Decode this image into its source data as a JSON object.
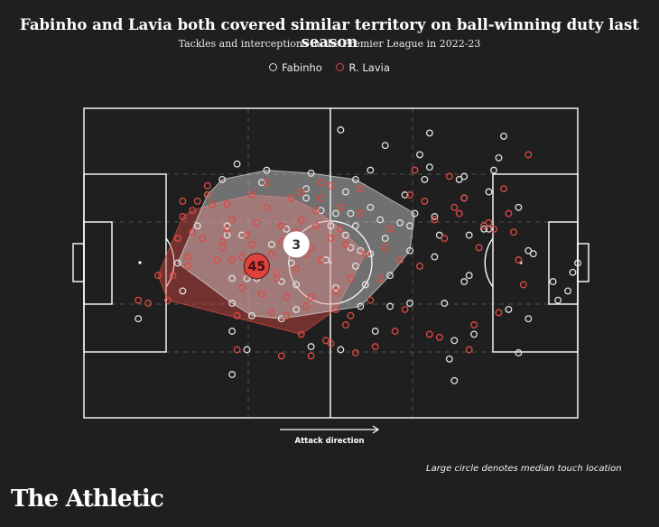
{
  "title": "Fabinho and Lavia both covered similar territory on ball-winning duty last season",
  "subtitle": "Tackles and interceptions in the Premier League in 2022-23",
  "legend": {
    "fabinho": "Fabinho",
    "lavia": "R. Lavia"
  },
  "attack_label": "Attack direction",
  "note": "Large circle denotes median touch location",
  "brand": "The Athletic",
  "colors": {
    "background": "#1f1f1f",
    "fabinho": "#e0e0e0",
    "lavia": "#e04a44",
    "pitch_lines": "#ffffff"
  },
  "chart_data": {
    "type": "scatter",
    "xlim": [
      0,
      100
    ],
    "ylim": [
      0,
      100
    ],
    "series": [
      {
        "name": "Fabinho",
        "median": {
          "x": 43,
          "y": 56,
          "label": "3"
        },
        "points": [
          [
            11,
            32
          ],
          [
            20,
            41
          ],
          [
            19,
            50
          ],
          [
            23,
            62
          ],
          [
            25,
            72
          ],
          [
            28,
            77
          ],
          [
            29,
            62
          ],
          [
            29,
            59
          ],
          [
            30,
            45
          ],
          [
            30,
            37
          ],
          [
            30,
            28
          ],
          [
            30,
            14
          ],
          [
            31,
            82
          ],
          [
            32,
            59
          ],
          [
            33,
            45
          ],
          [
            33,
            22
          ],
          [
            34,
            33
          ],
          [
            35,
            45
          ],
          [
            36,
            76
          ],
          [
            37,
            80
          ],
          [
            38,
            56
          ],
          [
            39,
            47
          ],
          [
            40,
            44
          ],
          [
            40,
            32
          ],
          [
            41,
            61
          ],
          [
            42,
            50
          ],
          [
            43,
            58
          ],
          [
            43,
            43
          ],
          [
            43,
            35
          ],
          [
            45,
            74
          ],
          [
            45,
            71
          ],
          [
            46,
            79
          ],
          [
            46,
            23
          ],
          [
            48,
            67
          ],
          [
            49,
            51
          ],
          [
            50,
            62
          ],
          [
            51,
            42
          ],
          [
            51,
            66
          ],
          [
            52,
            22
          ],
          [
            52,
            93
          ],
          [
            53,
            59
          ],
          [
            53,
            73
          ],
          [
            54,
            66
          ],
          [
            54,
            55
          ],
          [
            55,
            49
          ],
          [
            55,
            77
          ],
          [
            55,
            62
          ],
          [
            56,
            54
          ],
          [
            56,
            36
          ],
          [
            57,
            43
          ],
          [
            58,
            53
          ],
          [
            58,
            68
          ],
          [
            58,
            80
          ],
          [
            59,
            28
          ],
          [
            60,
            64
          ],
          [
            61,
            58
          ],
          [
            61,
            88
          ],
          [
            62,
            46
          ],
          [
            62,
            36
          ],
          [
            64,
            63
          ],
          [
            65,
            72
          ],
          [
            66,
            62
          ],
          [
            66,
            54
          ],
          [
            66,
            37
          ],
          [
            67,
            66
          ],
          [
            68,
            85
          ],
          [
            69,
            77
          ],
          [
            70,
            81
          ],
          [
            70,
            92
          ],
          [
            71,
            65
          ],
          [
            71,
            52
          ],
          [
            72,
            59
          ],
          [
            73,
            37
          ],
          [
            74,
            19
          ],
          [
            75,
            12
          ],
          [
            75,
            25
          ],
          [
            76,
            77
          ],
          [
            77,
            78
          ],
          [
            77,
            71
          ],
          [
            77,
            44
          ],
          [
            78,
            46
          ],
          [
            78,
            59
          ],
          [
            79,
            27
          ],
          [
            81,
            61
          ],
          [
            82,
            61
          ],
          [
            82,
            73
          ],
          [
            83,
            80
          ],
          [
            84,
            84
          ],
          [
            85,
            91
          ],
          [
            86,
            35
          ],
          [
            88,
            68
          ],
          [
            88,
            21
          ],
          [
            90,
            54
          ],
          [
            90,
            32
          ],
          [
            91,
            53
          ],
          [
            95,
            44
          ],
          [
            96,
            38
          ],
          [
            98,
            41
          ],
          [
            99,
            47
          ],
          [
            100,
            50
          ]
        ]
      },
      {
        "name": "R. Lavia",
        "median": {
          "x": 35,
          "y": 49,
          "label": "45"
        },
        "points": [
          [
            11,
            38
          ],
          [
            13,
            37
          ],
          [
            15,
            46
          ],
          [
            17,
            38
          ],
          [
            18,
            46
          ],
          [
            19,
            58
          ],
          [
            20,
            65
          ],
          [
            20,
            70
          ],
          [
            21,
            49
          ],
          [
            21,
            52
          ],
          [
            22,
            60
          ],
          [
            22,
            67
          ],
          [
            23,
            70
          ],
          [
            24,
            58
          ],
          [
            25,
            72
          ],
          [
            25,
            75
          ],
          [
            26,
            69
          ],
          [
            27,
            51
          ],
          [
            28,
            57
          ],
          [
            28,
            55
          ],
          [
            29,
            61
          ],
          [
            29,
            69
          ],
          [
            30,
            51
          ],
          [
            30,
            64
          ],
          [
            31,
            22
          ],
          [
            31,
            33
          ],
          [
            32,
            42
          ],
          [
            32,
            52
          ],
          [
            33,
            47
          ],
          [
            33,
            59
          ],
          [
            34,
            72
          ],
          [
            34,
            56
          ],
          [
            35,
            63
          ],
          [
            36,
            51
          ],
          [
            36,
            40
          ],
          [
            37,
            68
          ],
          [
            37,
            76
          ],
          [
            38,
            34
          ],
          [
            38,
            53
          ],
          [
            39,
            45
          ],
          [
            39,
            47
          ],
          [
            40,
            20
          ],
          [
            40,
            57
          ],
          [
            40,
            62
          ],
          [
            41,
            33
          ],
          [
            41,
            39
          ],
          [
            42,
            71
          ],
          [
            43,
            48
          ],
          [
            43,
            60
          ],
          [
            44,
            64
          ],
          [
            44,
            73
          ],
          [
            44,
            27
          ],
          [
            45,
            36
          ],
          [
            45,
            53
          ],
          [
            46,
            20
          ],
          [
            46,
            55
          ],
          [
            46,
            39
          ],
          [
            47,
            62
          ],
          [
            47,
            67
          ],
          [
            48,
            51
          ],
          [
            48,
            71
          ],
          [
            48,
            76
          ],
          [
            49,
            25
          ],
          [
            50,
            58
          ],
          [
            50,
            24
          ],
          [
            50,
            75
          ],
          [
            51,
            35
          ],
          [
            51,
            41
          ],
          [
            52,
            61
          ],
          [
            52,
            68
          ],
          [
            53,
            56
          ],
          [
            53,
            30
          ],
          [
            54,
            33
          ],
          [
            54,
            45
          ],
          [
            55,
            21
          ],
          [
            56,
            66
          ],
          [
            56,
            74
          ],
          [
            57,
            53
          ],
          [
            58,
            38
          ],
          [
            59,
            23
          ],
          [
            60,
            45
          ],
          [
            61,
            55
          ],
          [
            62,
            61
          ],
          [
            63,
            28
          ],
          [
            64,
            51
          ],
          [
            65,
            35
          ],
          [
            66,
            72
          ],
          [
            67,
            80
          ],
          [
            68,
            49
          ],
          [
            69,
            70
          ],
          [
            70,
            27
          ],
          [
            71,
            64
          ],
          [
            72,
            26
          ],
          [
            73,
            58
          ],
          [
            74,
            78
          ],
          [
            75,
            68
          ],
          [
            76,
            66
          ],
          [
            77,
            71
          ],
          [
            78,
            22
          ],
          [
            79,
            30
          ],
          [
            80,
            55
          ],
          [
            81,
            62
          ],
          [
            82,
            63
          ],
          [
            83,
            61
          ],
          [
            84,
            34
          ],
          [
            85,
            74
          ],
          [
            86,
            66
          ],
          [
            87,
            60
          ],
          [
            88,
            51
          ],
          [
            89,
            43
          ],
          [
            90,
            85
          ]
        ]
      }
    ]
  }
}
